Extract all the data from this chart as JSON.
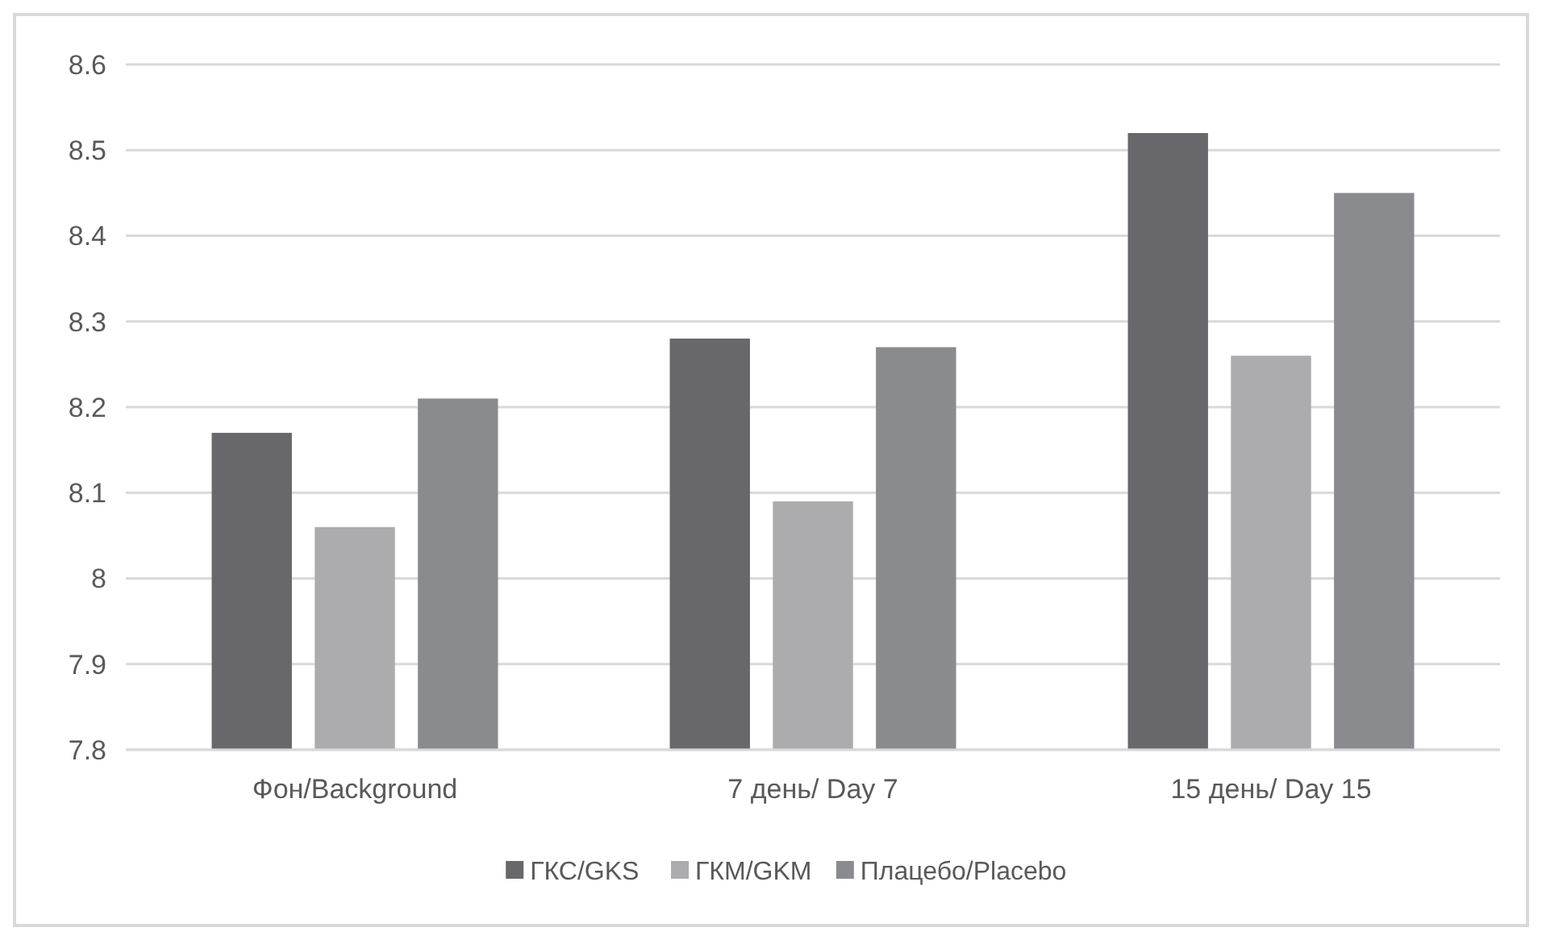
{
  "chart_data": {
    "type": "bar",
    "categories": [
      "Фон/Background",
      "7 день/ Day 7",
      "15 день/ Day 15"
    ],
    "series": [
      {
        "name": "ГКС/GKS",
        "color": "#68686c",
        "values": [
          8.17,
          8.28,
          8.52
        ]
      },
      {
        "name": "ГКМ/GKM",
        "color": "#acacae",
        "values": [
          8.06,
          8.09,
          8.26
        ]
      },
      {
        "name": "Плацебо/Placebo",
        "color": "#8a8b8e",
        "values": [
          8.21,
          8.27,
          8.45
        ]
      }
    ],
    "ylim": [
      7.8,
      8.6
    ],
    "yticks": [
      7.8,
      7.9,
      8,
      8.1,
      8.2,
      8.3,
      8.4,
      8.5,
      8.6
    ],
    "grid": "y",
    "legend": "bottom"
  }
}
